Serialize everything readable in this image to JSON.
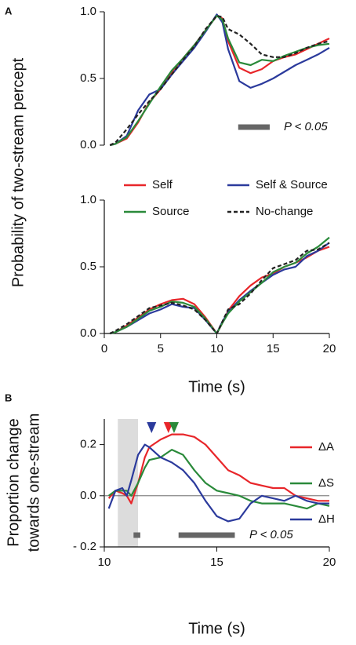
{
  "chart_data": [
    {
      "type": "line",
      "panel": "A",
      "ylabel": "Probability of two-stream percept",
      "x": [
        0.5,
        1,
        2,
        3,
        4,
        5,
        6,
        7,
        8,
        9,
        10,
        10.5,
        11,
        12,
        13,
        14,
        15,
        16,
        17,
        18,
        19,
        20
      ],
      "xlim": [
        0,
        20
      ],
      "ylim": [
        0,
        1
      ],
      "yticks": [
        {
          "value": 0,
          "label": "0.0"
        },
        {
          "value": 0.5,
          "label": "0.5"
        },
        {
          "value": 1,
          "label": "1.0"
        }
      ],
      "series": [
        {
          "color": "#e8262a",
          "values": [
            0,
            0.01,
            0.05,
            0.17,
            0.32,
            0.42,
            0.55,
            0.65,
            0.75,
            0.86,
            0.97,
            0.95,
            0.78,
            0.58,
            0.54,
            0.57,
            0.63,
            0.66,
            0.68,
            0.72,
            0.76,
            0.8
          ]
        },
        {
          "color": "#2b3a9c",
          "values": [
            0,
            0.01,
            0.07,
            0.26,
            0.38,
            0.42,
            0.53,
            0.63,
            0.73,
            0.85,
            0.98,
            0.92,
            0.72,
            0.48,
            0.43,
            0.46,
            0.5,
            0.55,
            0.6,
            0.64,
            0.68,
            0.73
          ]
        },
        {
          "color": "#2a8a3a",
          "values": [
            0,
            0.01,
            0.06,
            0.18,
            0.31,
            0.44,
            0.56,
            0.65,
            0.75,
            0.86,
            0.97,
            0.94,
            0.8,
            0.62,
            0.6,
            0.64,
            0.63,
            0.67,
            0.7,
            0.73,
            0.75,
            0.76
          ]
        },
        {
          "color": "#222222",
          "dashed": true,
          "values": [
            0,
            0.02,
            0.12,
            0.23,
            0.33,
            0.42,
            0.53,
            0.64,
            0.74,
            0.87,
            0.97,
            0.96,
            0.87,
            0.83,
            0.76,
            0.68,
            0.66,
            0.66,
            0.69,
            0.73,
            0.76,
            0.78
          ]
        }
      ],
      "significance": {
        "bars": [
          [
            11.9,
            14.7
          ]
        ],
        "label": "P < 0.05"
      }
    },
    {
      "type": "line",
      "xlabel": "Time (s)",
      "x": [
        0.5,
        1,
        2,
        3,
        4,
        5,
        6,
        7,
        8,
        9,
        10,
        10.5,
        11,
        12,
        13,
        14,
        15,
        16,
        17,
        18,
        19,
        20
      ],
      "xlim": [
        0,
        20
      ],
      "xticks": [
        0,
        5,
        10,
        15,
        20
      ],
      "ylim": [
        0,
        1
      ],
      "yticks": [
        {
          "value": 0,
          "label": "0.0"
        },
        {
          "value": 0.5,
          "label": "0.5"
        },
        {
          "value": 1,
          "label": "1.0"
        }
      ],
      "legend": true,
      "series": [
        {
          "name": "Self",
          "color": "#e8262a",
          "values": [
            0,
            0.01,
            0.06,
            0.12,
            0.18,
            0.22,
            0.25,
            0.26,
            0.22,
            0.12,
            0,
            0.08,
            0.17,
            0.28,
            0.36,
            0.42,
            0.45,
            0.5,
            0.53,
            0.57,
            0.62,
            0.65
          ]
        },
        {
          "name": "Self & Source",
          "color": "#2b3a9c",
          "values": [
            0,
            0.01,
            0.05,
            0.1,
            0.15,
            0.18,
            0.22,
            0.2,
            0.19,
            0.1,
            0,
            0.09,
            0.16,
            0.25,
            0.32,
            0.38,
            0.44,
            0.48,
            0.5,
            0.58,
            0.62,
            0.68
          ]
        },
        {
          "name": "Source",
          "color": "#2a8a3a",
          "values": [
            0,
            0.01,
            0.05,
            0.11,
            0.17,
            0.2,
            0.24,
            0.23,
            0.2,
            0.11,
            0,
            0.08,
            0.15,
            0.24,
            0.31,
            0.38,
            0.46,
            0.5,
            0.53,
            0.6,
            0.65,
            0.72
          ]
        },
        {
          "name": "No-change",
          "color": "#222222",
          "dashed": true,
          "values": [
            0,
            0.02,
            0.07,
            0.13,
            0.19,
            0.21,
            0.23,
            0.21,
            0.18,
            0.1,
            0,
            0.09,
            0.18,
            0.22,
            0.3,
            0.4,
            0.49,
            0.52,
            0.55,
            0.62,
            0.63,
            0.68
          ]
        }
      ]
    },
    {
      "type": "line",
      "panel": "B",
      "xlabel": "Time (s)",
      "ylabel": [
        "Proportion change",
        "towards one-stream"
      ],
      "x": [
        10.2,
        10.5,
        10.8,
        11,
        11.2,
        11.5,
        11.8,
        12,
        12.5,
        13,
        13.5,
        14,
        14.5,
        15,
        15.5,
        16,
        16.5,
        17,
        17.5,
        18,
        18.5,
        19,
        19.5,
        20
      ],
      "xlim": [
        10,
        20
      ],
      "xticks": [
        10,
        15,
        20
      ],
      "ylim": [
        -0.2,
        0.3
      ],
      "yticks": [
        {
          "value": -0.2,
          "label": "- 0.2"
        },
        {
          "value": 0,
          "label": "0.0"
        },
        {
          "value": 0.2,
          "label": "0.2"
        }
      ],
      "legend": true,
      "shaded": [
        10.6,
        11.5
      ],
      "peak_markers": [
        {
          "x": 12.1,
          "color": "#2b3a9c"
        },
        {
          "x": 12.85,
          "color": "#e8262a"
        },
        {
          "x": 13.1,
          "color": "#2a8a3a"
        }
      ],
      "series": [
        {
          "name": "ΔA",
          "color": "#e8262a",
          "values": [
            -0.01,
            0.02,
            0.01,
            0,
            -0.03,
            0.05,
            0.15,
            0.19,
            0.22,
            0.24,
            0.24,
            0.23,
            0.2,
            0.15,
            0.1,
            0.08,
            0.05,
            0.04,
            0.03,
            0.03,
            0,
            -0.01,
            -0.02,
            -0.02
          ]
        },
        {
          "name": "ΔS",
          "color": "#2a8a3a",
          "values": [
            0,
            0.02,
            0.02,
            0.02,
            0,
            0.05,
            0.11,
            0.14,
            0.15,
            0.18,
            0.16,
            0.1,
            0.05,
            0.02,
            0.01,
            0,
            -0.02,
            -0.03,
            -0.03,
            -0.03,
            -0.04,
            -0.05,
            -0.03,
            -0.04
          ]
        },
        {
          "name": "ΔH",
          "color": "#2b3a9c",
          "values": [
            -0.05,
            0.02,
            0.03,
            0,
            0.06,
            0.16,
            0.2,
            0.19,
            0.15,
            0.13,
            0.1,
            0.05,
            -0.02,
            -0.08,
            -0.1,
            -0.09,
            -0.03,
            0,
            -0.01,
            -0.02,
            0,
            -0.02,
            -0.03,
            -0.03
          ]
        }
      ],
      "significance": {
        "bars": [
          [
            11.3,
            11.6
          ],
          [
            13.3,
            15.8
          ]
        ],
        "label": "P < 0.05"
      }
    }
  ]
}
